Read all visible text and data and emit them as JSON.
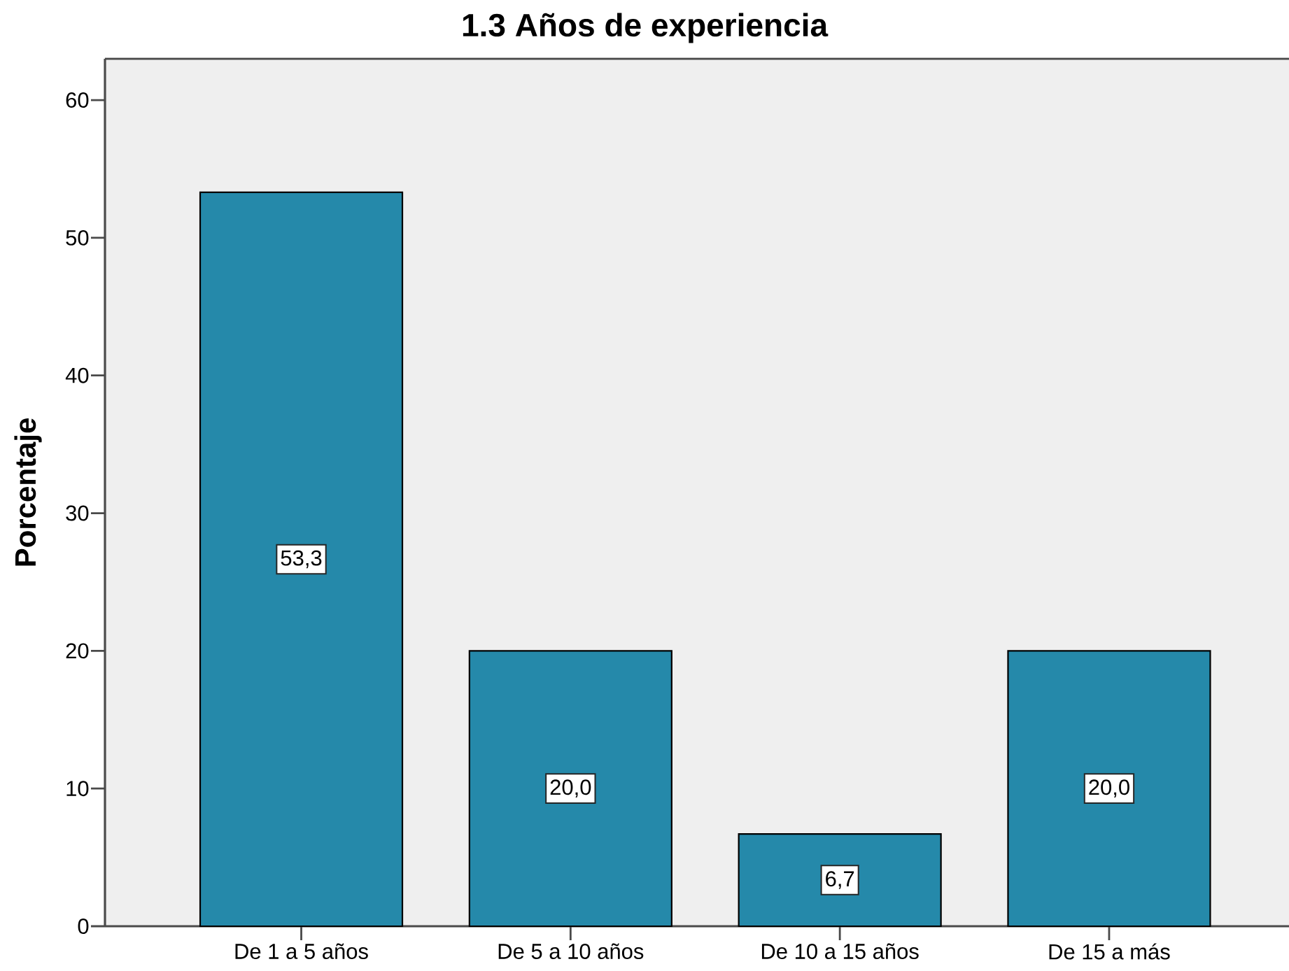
{
  "chart_data": {
    "type": "bar",
    "title": "1.3 Años de experiencia",
    "ylabel": "Porcentaje",
    "categories": [
      "De 1 a 5 años",
      "De 5 a 10 años",
      "De 10 a 15 años",
      "De 15 a más"
    ],
    "values": [
      53.3,
      20.0,
      6.7,
      20.0
    ],
    "value_labels": [
      "53,3",
      "20,0",
      "6,7",
      "20,0"
    ],
    "color": "#2589aa",
    "ylim": [
      0,
      63
    ],
    "yticks": [
      0,
      10,
      20,
      30,
      40,
      50,
      60
    ]
  }
}
